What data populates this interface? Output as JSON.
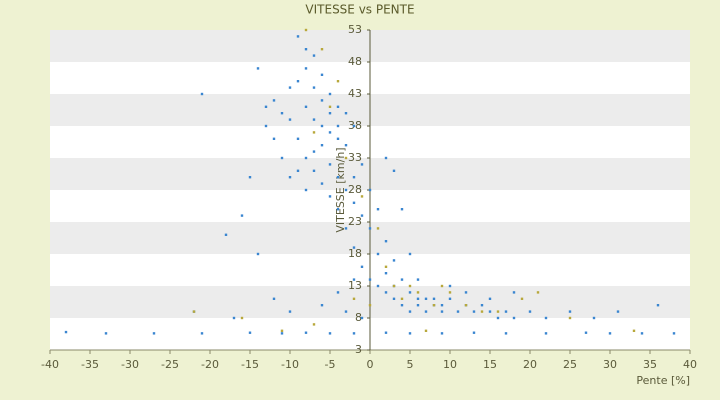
{
  "chart_data": {
    "type": "scatter",
    "title": "VITESSE vs PENTE",
    "x_label": "Pente [%]",
    "y_label": "VITESSE [km/h]",
    "xlim": [
      -40,
      40
    ],
    "xticks": [
      -40,
      -35,
      -30,
      -25,
      -20,
      -15,
      -10,
      -5,
      0,
      5,
      10,
      15,
      20,
      25,
      30,
      35,
      40
    ],
    "ylim": [
      3,
      53
    ],
    "yticks": [
      3,
      8,
      13,
      18,
      23,
      28,
      33,
      38,
      43,
      48,
      53
    ],
    "grid": "bands",
    "series": [
      {
        "color": "#3a86d0",
        "x": [
          -9,
          -8,
          -7,
          -8,
          -6,
          -7,
          -5,
          -6,
          -4,
          -5,
          -9,
          -10,
          -8,
          -7,
          -6,
          -5,
          -4,
          -3,
          -4,
          -3,
          -2,
          -6,
          -7,
          -8,
          -9,
          -10,
          -11,
          -12,
          -13,
          -14,
          -21,
          -15,
          -16,
          -18,
          -14,
          -5,
          -4,
          -3,
          -2,
          -1,
          -2,
          -1,
          0,
          1,
          0,
          2,
          1,
          3,
          2,
          4,
          3,
          5,
          6,
          7,
          8,
          9,
          10,
          11,
          12,
          13,
          14,
          15,
          16,
          17,
          18,
          20,
          22,
          25,
          5,
          6,
          7,
          8,
          9,
          4,
          3,
          2,
          1,
          0,
          -1,
          -2,
          -3,
          -4,
          -5,
          -6,
          -7,
          -8,
          -9,
          -10,
          -11,
          -12,
          -13,
          3,
          2,
          4,
          5,
          6,
          10,
          12,
          15,
          18,
          31,
          36,
          28,
          -38,
          -33,
          -27,
          -21,
          -15,
          -11,
          -8,
          -5,
          -2,
          2,
          5,
          9,
          13,
          17,
          22,
          27,
          30,
          34,
          38,
          -1,
          -3,
          -6,
          -10,
          -12,
          -22,
          -17,
          -4,
          -2
        ],
        "y": [
          52,
          50,
          49,
          47,
          46,
          44,
          43,
          42,
          41,
          40,
          45,
          44,
          41,
          39,
          38,
          37,
          36,
          35,
          38,
          40,
          38,
          35,
          34,
          33,
          31,
          30,
          33,
          36,
          38,
          47,
          43,
          30,
          24,
          21,
          18,
          32,
          30,
          28,
          26,
          24,
          30,
          32,
          28,
          25,
          22,
          20,
          18,
          17,
          15,
          14,
          13,
          12,
          11,
          11,
          10,
          10,
          11,
          9,
          10,
          9,
          10,
          9,
          8,
          9,
          8,
          9,
          8,
          9,
          9,
          10,
          9,
          11,
          9,
          10,
          11,
          12,
          13,
          14,
          16,
          19,
          22,
          25,
          27,
          29,
          31,
          28,
          36,
          39,
          40,
          42,
          41,
          31,
          33,
          25,
          18,
          14,
          13,
          12,
          11,
          12,
          9,
          10,
          8,
          5.8,
          5.6,
          5.6,
          5.6,
          5.7,
          5.6,
          5.7,
          5.6,
          5.6,
          5.7,
          5.6,
          5.6,
          5.7,
          5.6,
          5.6,
          5.7,
          5.6,
          5.6,
          5.6,
          8,
          9,
          10,
          9,
          11,
          9,
          8,
          12,
          14
        ]
      },
      {
        "color": "#b8a83c",
        "x": [
          -8,
          -6,
          -4,
          -5,
          -7,
          -3,
          -1,
          1,
          2,
          3,
          4,
          6,
          8,
          10,
          12,
          14,
          19,
          21,
          25,
          0,
          -2,
          -16,
          -22,
          -7,
          -11,
          33,
          7,
          16,
          5,
          9
        ],
        "y": [
          53,
          50,
          45,
          41,
          37,
          33,
          27,
          22,
          16,
          13,
          11,
          12,
          10,
          12,
          10,
          9,
          11,
          12,
          8,
          10,
          11,
          8,
          9,
          7,
          6,
          6,
          6,
          9,
          13,
          13
        ]
      }
    ]
  }
}
